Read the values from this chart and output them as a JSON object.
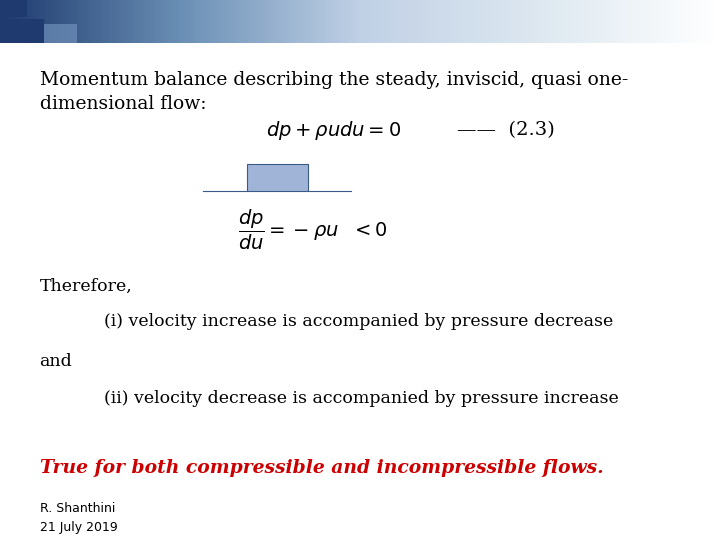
{
  "bg_color": "#ffffff",
  "title_text1": "Momentum balance describing the steady, inviscid, quasi one-",
  "title_text2": "dimensional flow:",
  "equation1": "$dp + \\rho u du = 0$",
  "eq1_ref": "——  (2.3)",
  "equation2": "$\\dfrac{dp}{du} = -\\rho u \\ \\ < 0$",
  "therefore_text": "Therefore,",
  "point_i": "(i) velocity increase is accompanied by pressure decrease",
  "and_text": "and",
  "point_ii": "(ii) velocity decrease is accompanied by pressure increase",
  "conclusion_text": "True for both compressible and incompressible flows.",
  "footer_line1": "R. Shanthini",
  "footer_line2": "21 July 2019",
  "arrow_fill_color": "#a0b4d8",
  "arrow_edge_color": "#3a5a8a",
  "conclusion_color": "#cc0000",
  "text_color": "#000000",
  "header_colors": [
    "#1e3a6e",
    "#6a8fb5",
    "#c0d0e5",
    "#dde8f0",
    "#ffffff"
  ],
  "title_fontsize": 13.5,
  "body_fontsize": 12.5,
  "small_fontsize": 9,
  "math_fontsize": 14
}
